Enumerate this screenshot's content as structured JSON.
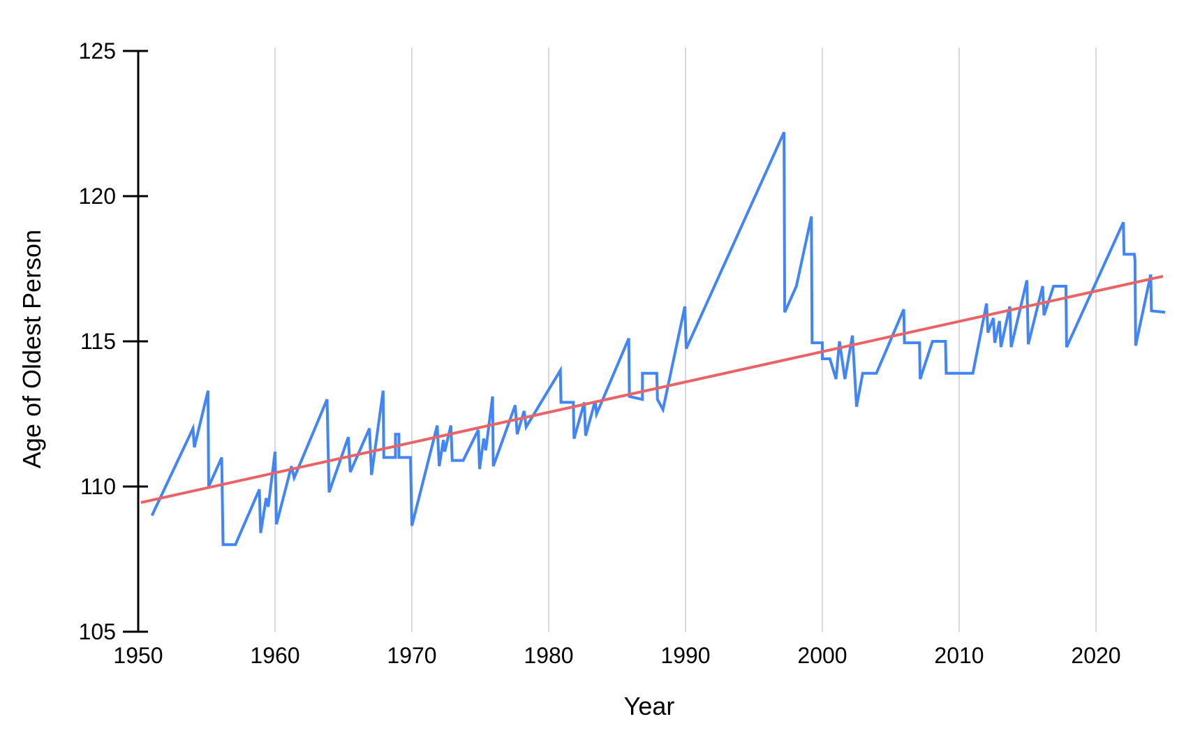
{
  "chart_data": {
    "type": "line",
    "title": "",
    "xlabel": "Year",
    "ylabel": "Age of Oldest Person",
    "xlim": [
      1948.5,
      2026.5
    ],
    "ylim": [
      105,
      125
    ],
    "x_ticks": [
      1950,
      1960,
      1970,
      1980,
      1990,
      2000,
      2010,
      2020
    ],
    "y_ticks": [
      105,
      110,
      115,
      120,
      125
    ],
    "grid": "vertical gridlines at each decade, light gray; no horizontal gridlines; black left axis with tick marks; no bottom axis line",
    "legend": "none",
    "colors": {
      "series_blue": "#4285f4",
      "trend_red": "#e96367",
      "gridline": "#d9d9d9",
      "axis": "#000000",
      "background": "#ffffff"
    },
    "series": [
      {
        "name": "Age of oldest person (stepped sawtooth line)",
        "color": "#4285f4",
        "points": [
          [
            1951.0,
            109.0
          ],
          [
            1954.0,
            112.0
          ],
          [
            1954.1,
            111.35
          ],
          [
            1955.1,
            113.3
          ],
          [
            1955.15,
            110.0
          ],
          [
            1956.1,
            111.0
          ],
          [
            1956.2,
            108.0
          ],
          [
            1957.1,
            108.0
          ],
          [
            1958.85,
            109.9
          ],
          [
            1958.95,
            108.4
          ],
          [
            1959.35,
            109.6
          ],
          [
            1959.5,
            109.3
          ],
          [
            1960.0,
            111.2
          ],
          [
            1960.1,
            108.7
          ],
          [
            1961.2,
            110.7
          ],
          [
            1961.4,
            110.3
          ],
          [
            1963.8,
            113.0
          ],
          [
            1963.95,
            109.8
          ],
          [
            1965.35,
            111.7
          ],
          [
            1965.5,
            110.5
          ],
          [
            1966.9,
            112.0
          ],
          [
            1967.05,
            110.4
          ],
          [
            1967.9,
            113.3
          ],
          [
            1967.95,
            111.0
          ],
          [
            1968.8,
            111.0
          ],
          [
            1968.8,
            111.8
          ],
          [
            1969.05,
            111.8
          ],
          [
            1969.05,
            111.0
          ],
          [
            1969.9,
            111.0
          ],
          [
            1970.0,
            108.65
          ],
          [
            1971.85,
            112.1
          ],
          [
            1972.0,
            110.7
          ],
          [
            1972.3,
            111.6
          ],
          [
            1972.4,
            111.2
          ],
          [
            1972.85,
            112.1
          ],
          [
            1972.95,
            110.9
          ],
          [
            1973.75,
            110.9
          ],
          [
            1974.85,
            111.95
          ],
          [
            1974.95,
            110.6
          ],
          [
            1975.25,
            111.65
          ],
          [
            1975.4,
            111.25
          ],
          [
            1975.9,
            113.1
          ],
          [
            1975.95,
            110.7
          ],
          [
            1977.55,
            112.8
          ],
          [
            1977.7,
            111.8
          ],
          [
            1978.2,
            112.6
          ],
          [
            1978.35,
            112.05
          ],
          [
            1980.85,
            114.0
          ],
          [
            1980.9,
            112.9
          ],
          [
            1981.8,
            112.9
          ],
          [
            1981.85,
            111.65
          ],
          [
            1982.6,
            112.9
          ],
          [
            1982.7,
            111.75
          ],
          [
            1983.4,
            112.95
          ],
          [
            1983.5,
            112.5
          ],
          [
            1985.85,
            115.1
          ],
          [
            1985.9,
            113.1
          ],
          [
            1986.85,
            113.0
          ],
          [
            1986.85,
            113.9
          ],
          [
            1987.9,
            113.9
          ],
          [
            1987.95,
            113.0
          ],
          [
            1988.35,
            112.65
          ],
          [
            1989.95,
            116.2
          ],
          [
            1990.05,
            114.75
          ],
          [
            1997.2,
            122.2
          ],
          [
            1997.25,
            116.0
          ],
          [
            1998.1,
            116.9
          ],
          [
            1999.2,
            119.3
          ],
          [
            1999.25,
            114.95
          ],
          [
            2000.0,
            114.95
          ],
          [
            2000.0,
            114.4
          ],
          [
            2000.55,
            114.4
          ],
          [
            2001.0,
            113.7
          ],
          [
            2001.25,
            115.0
          ],
          [
            2001.65,
            113.7
          ],
          [
            2002.2,
            115.2
          ],
          [
            2002.5,
            112.75
          ],
          [
            2002.95,
            113.9
          ],
          [
            2003.95,
            113.9
          ],
          [
            2005.95,
            116.1
          ],
          [
            2006.0,
            114.95
          ],
          [
            2007.1,
            114.95
          ],
          [
            2007.15,
            113.7
          ],
          [
            2008.05,
            115.0
          ],
          [
            2009.0,
            115.0
          ],
          [
            2009.05,
            113.9
          ],
          [
            2011.0,
            113.9
          ],
          [
            2012.0,
            116.3
          ],
          [
            2012.1,
            115.3
          ],
          [
            2012.5,
            115.8
          ],
          [
            2012.6,
            114.95
          ],
          [
            2012.95,
            115.7
          ],
          [
            2013.05,
            114.8
          ],
          [
            2013.7,
            116.2
          ],
          [
            2013.8,
            114.8
          ],
          [
            2014.95,
            117.1
          ],
          [
            2015.05,
            114.9
          ],
          [
            2016.1,
            116.9
          ],
          [
            2016.2,
            115.9
          ],
          [
            2016.9,
            116.9
          ],
          [
            2017.8,
            116.9
          ],
          [
            2017.85,
            114.8
          ],
          [
            2022.0,
            119.1
          ],
          [
            2022.05,
            118.0
          ],
          [
            2022.8,
            118.0
          ],
          [
            2022.85,
            117.8
          ],
          [
            2022.9,
            114.85
          ],
          [
            2024.0,
            117.3
          ],
          [
            2024.05,
            116.05
          ],
          [
            2025.05,
            116.0
          ]
        ]
      },
      {
        "name": "Linear trend line",
        "color": "#e96367",
        "points": [
          [
            1950.2,
            109.45
          ],
          [
            2024.9,
            117.24
          ]
        ]
      }
    ]
  }
}
